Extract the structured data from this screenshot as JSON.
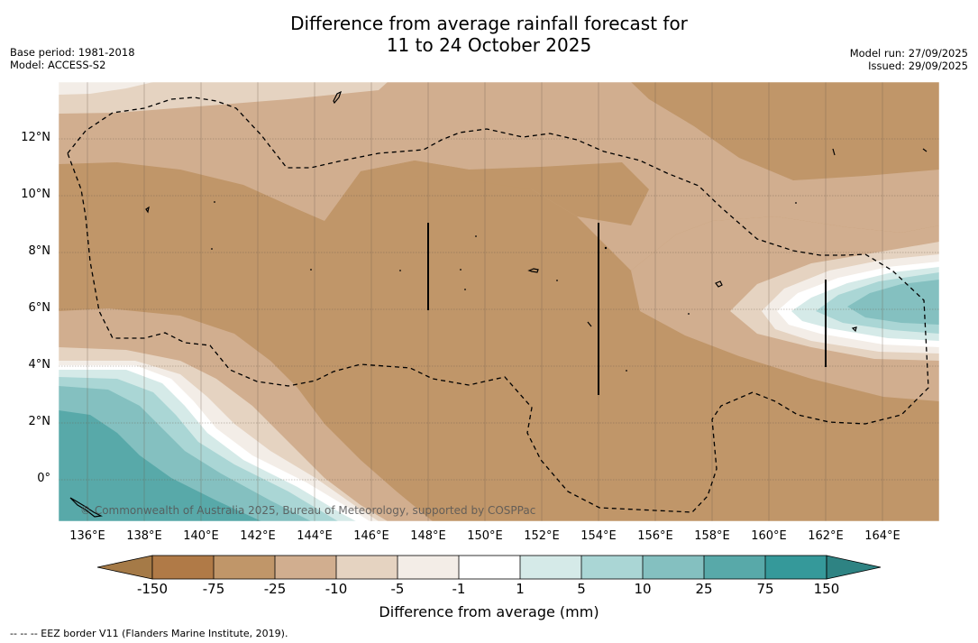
{
  "title": {
    "line1": "Difference from average rainfall forecast for",
    "line2": "11 to 24 October 2025"
  },
  "meta": {
    "base_period": "Base period: 1981-2018",
    "model": "Model: ACCESS-S2",
    "model_run": "Model run: 27/09/2025",
    "issued": "Issued: 29/09/2025"
  },
  "latitude_ticks": [
    "12°N",
    "10°N",
    "8°N",
    "6°N",
    "4°N",
    "2°N",
    "0°"
  ],
  "longitude_ticks": [
    "136°E",
    "138°E",
    "140°E",
    "142°E",
    "144°E",
    "146°E",
    "148°E",
    "150°E",
    "152°E",
    "154°E",
    "156°E",
    "158°E",
    "160°E",
    "162°E",
    "164°E"
  ],
  "colorbar": {
    "labels": [
      "-150",
      "-75",
      "-25",
      "-10",
      "-5",
      "-1",
      "1",
      "5",
      "10",
      "25",
      "75",
      "150"
    ],
    "colors": [
      "#a57a47",
      "#b07a47",
      "#c09669",
      "#d1ae8f",
      "#e5d3c1",
      "#f3ede7",
      "#ffffff",
      "#d5eae8",
      "#aad6d5",
      "#84c0c0",
      "#58a9a9",
      "#35999a",
      "#2e8383"
    ],
    "title": "Difference from average (mm)"
  },
  "copyright": "© Commonwealth of Australia 2025, Bureau of Meteorology, supported by COSPPac",
  "legend_note": "--  --  -- EEZ border V11 (Flanders Marine Institute, 2019)."
}
